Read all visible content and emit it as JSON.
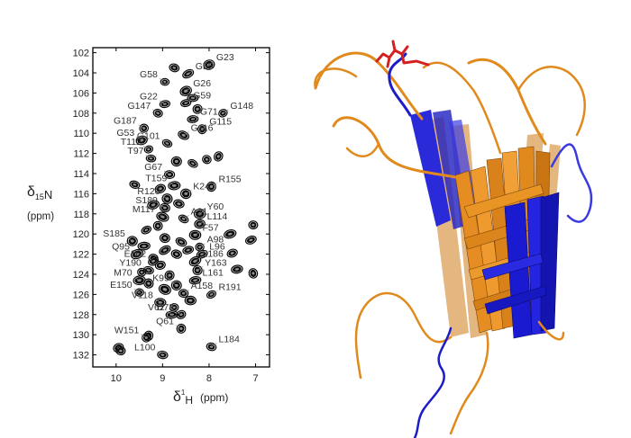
{
  "chart_data": {
    "type": "scatter",
    "title": "",
    "xlabel": "δ1H (ppm)",
    "xlabel_parts": {
      "delta": "δ",
      "sup": "1",
      "nucleus": "H",
      "unit": "(ppm)"
    },
    "ylabel": "δ15N (ppm)",
    "ylabel_parts": {
      "delta": "δ",
      "sub": "15",
      "nucleus": "N",
      "unit": "(ppm)"
    },
    "xlim": [
      10.5,
      6.7
    ],
    "ylim": [
      101.5,
      133.2
    ],
    "x_ticks": [
      10,
      9,
      8,
      7
    ],
    "y_ticks": [
      102,
      104,
      106,
      108,
      110,
      112,
      114,
      116,
      118,
      120,
      122,
      124,
      126,
      128,
      130,
      132
    ],
    "grid": false,
    "labeled_peaks": [
      {
        "label": "G23",
        "x": 8.0,
        "y": 103.2
      },
      {
        "label": "G55",
        "x": 8.45,
        "y": 104.1
      },
      {
        "label": "G58",
        "x": 8.95,
        "y": 104.9
      },
      {
        "label": "G26",
        "x": 8.5,
        "y": 105.8
      },
      {
        "label": "G59",
        "x": 8.5,
        "y": 107.0
      },
      {
        "label": "G22",
        "x": 8.95,
        "y": 107.1
      },
      {
        "label": "G147",
        "x": 9.1,
        "y": 108.0
      },
      {
        "label": "G148",
        "x": 7.7,
        "y": 108.0
      },
      {
        "label": "G71",
        "x": 8.35,
        "y": 108.6
      },
      {
        "label": "G187",
        "x": 9.4,
        "y": 109.5
      },
      {
        "label": "G115",
        "x": 8.15,
        "y": 109.6
      },
      {
        "label": "G116",
        "x": 8.55,
        "y": 110.2
      },
      {
        "label": "G53",
        "x": 9.45,
        "y": 110.7
      },
      {
        "label": "G101",
        "x": 8.9,
        "y": 111.0
      },
      {
        "label": "T112",
        "x": 9.3,
        "y": 111.6
      },
      {
        "label": "T97",
        "x": 9.25,
        "y": 112.5
      },
      {
        "label": "G67",
        "x": 8.85,
        "y": 114.1
      },
      {
        "label": "T159",
        "x": 8.75,
        "y": 115.2
      },
      {
        "label": "R155",
        "x": 7.95,
        "y": 115.3
      },
      {
        "label": "K24",
        "x": 8.5,
        "y": 116.0
      },
      {
        "label": "R120",
        "x": 8.9,
        "y": 116.5
      },
      {
        "label": "S189",
        "x": 8.95,
        "y": 117.4
      },
      {
        "label": "Y60",
        "x": 8.2,
        "y": 118.0
      },
      {
        "label": "M117",
        "x": 9.0,
        "y": 118.3
      },
      {
        "label": "A21",
        "x": 8.55,
        "y": 118.5
      },
      {
        "label": "L114",
        "x": 8.2,
        "y": 119.0
      },
      {
        "label": "F57",
        "x": 8.3,
        "y": 120.1
      },
      {
        "label": "S185",
        "x": 9.65,
        "y": 120.7
      },
      {
        "label": "A98",
        "x": 8.2,
        "y": 121.3
      },
      {
        "label": "Q95",
        "x": 9.55,
        "y": 122.0
      },
      {
        "label": "L96",
        "x": 8.15,
        "y": 122.0
      },
      {
        "label": "E162",
        "x": 9.2,
        "y": 122.7
      },
      {
        "label": "L186",
        "x": 8.3,
        "y": 122.7
      },
      {
        "label": "Y190",
        "x": 9.3,
        "y": 123.6
      },
      {
        "label": "Y163",
        "x": 8.25,
        "y": 123.6
      },
      {
        "label": "M70",
        "x": 9.5,
        "y": 124.6
      },
      {
        "label": "L161",
        "x": 8.3,
        "y": 124.6
      },
      {
        "label": "K99",
        "x": 8.7,
        "y": 125.1
      },
      {
        "label": "E150",
        "x": 9.5,
        "y": 125.8
      },
      {
        "label": "A158",
        "x": 8.55,
        "y": 125.9
      },
      {
        "label": "R191",
        "x": 7.95,
        "y": 126.0
      },
      {
        "label": "V118",
        "x": 9.05,
        "y": 126.8
      },
      {
        "label": "V62",
        "x": 8.8,
        "y": 128.0
      },
      {
        "label": "D73",
        "x": 8.6,
        "y": 128.0
      },
      {
        "label": "Q61",
        "x": 8.6,
        "y": 129.4
      },
      {
        "label": "W151",
        "x": 9.35,
        "y": 130.3
      },
      {
        "label": "L184",
        "x": 7.95,
        "y": 131.2
      },
      {
        "label": "L100",
        "x": 9.0,
        "y": 132.0
      }
    ],
    "unlabeled_peaks": [
      {
        "x": 9.95,
        "y": 131.3
      },
      {
        "x": 9.9,
        "y": 131.6
      },
      {
        "x": 9.3,
        "y": 130.1
      },
      {
        "x": 8.75,
        "y": 103.5
      },
      {
        "x": 8.35,
        "y": 106.5
      },
      {
        "x": 8.25,
        "y": 107.6
      },
      {
        "x": 9.05,
        "y": 115.5
      },
      {
        "x": 7.8,
        "y": 112.3
      },
      {
        "x": 8.05,
        "y": 112.6
      },
      {
        "x": 7.05,
        "y": 119.1
      },
      {
        "x": 7.1,
        "y": 120.6
      },
      {
        "x": 7.55,
        "y": 120.0
      },
      {
        "x": 7.5,
        "y": 121.9
      },
      {
        "x": 7.4,
        "y": 123.5
      },
      {
        "x": 7.05,
        "y": 123.9
      },
      {
        "x": 9.2,
        "y": 117.1
      },
      {
        "x": 8.65,
        "y": 117.0
      },
      {
        "x": 8.45,
        "y": 121.6
      },
      {
        "x": 9.35,
        "y": 119.6
      },
      {
        "x": 8.95,
        "y": 120.4
      },
      {
        "x": 9.4,
        "y": 121.2
      },
      {
        "x": 8.7,
        "y": 122.0
      },
      {
        "x": 9.05,
        "y": 123.1
      },
      {
        "x": 8.85,
        "y": 124.1
      },
      {
        "x": 9.3,
        "y": 124.9
      },
      {
        "x": 8.95,
        "y": 125.5
      },
      {
        "x": 8.4,
        "y": 126.6
      },
      {
        "x": 8.75,
        "y": 127.3
      },
      {
        "x": 9.2,
        "y": 122.4
      },
      {
        "x": 8.6,
        "y": 120.8
      },
      {
        "x": 9.45,
        "y": 123.8
      },
      {
        "x": 8.35,
        "y": 113.0
      },
      {
        "x": 8.7,
        "y": 112.8
      },
      {
        "x": 9.6,
        "y": 115.1
      },
      {
        "x": 8.95,
        "y": 121.6
      },
      {
        "x": 9.1,
        "y": 119.2
      }
    ]
  },
  "colors": {
    "peak": "#0a0a0a",
    "orange": "#e08a1e",
    "orange_dark": "#b56a10",
    "blue": "#1c1cc8",
    "blue_dark": "#0d0d8a",
    "red": "#d42020"
  }
}
